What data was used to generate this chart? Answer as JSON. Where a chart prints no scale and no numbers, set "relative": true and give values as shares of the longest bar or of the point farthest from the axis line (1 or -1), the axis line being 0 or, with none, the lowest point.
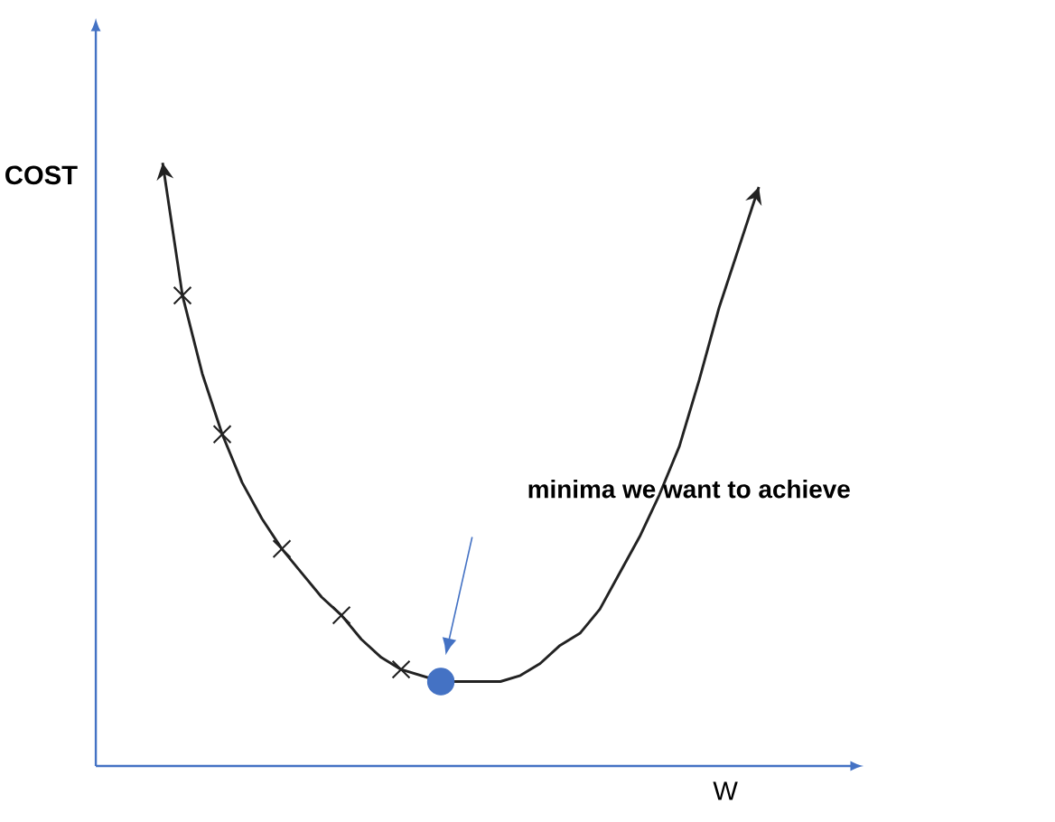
{
  "chart_data": {
    "type": "line",
    "relative": true,
    "xlabel": "W",
    "ylabel": "COST",
    "annotations": [
      "minima we want to achieve"
    ],
    "categories": [
      null,
      null,
      null,
      null,
      null,
      null,
      null,
      null,
      null,
      null,
      null,
      null,
      null,
      null,
      null,
      null,
      null,
      null,
      null,
      null,
      null,
      null,
      null,
      null,
      null,
      null,
      null,
      null,
      null,
      null,
      null
    ],
    "series": [
      {
        "color": "#222222",
        "marker": "none",
        "values": [
          1.0,
          0.78,
          0.65,
          0.55,
          0.47,
          0.41,
          0.36,
          0.32,
          0.28,
          0.25,
          0.21,
          0.18,
          0.16,
          0.15,
          0.14,
          0.14,
          0.14,
          0.14,
          0.15,
          0.17,
          0.2,
          0.22,
          0.26,
          0.32,
          0.38,
          0.45,
          0.53,
          0.64,
          0.76,
          0.86,
          0.96
        ]
      },
      {
        "color": "#222222",
        "marker": "cross",
        "values": [
          null,
          0.78,
          null,
          0.55,
          null,
          null,
          0.36,
          null,
          null,
          0.25,
          null,
          null,
          0.16,
          null,
          null,
          null,
          null,
          null,
          null,
          null,
          null,
          null,
          null,
          null,
          null,
          null,
          null,
          null,
          null,
          null,
          null
        ]
      },
      {
        "color": "#4472c4",
        "marker": "circle",
        "values": [
          null,
          null,
          null,
          null,
          null,
          null,
          null,
          null,
          null,
          null,
          null,
          null,
          null,
          null,
          0.14,
          null,
          null,
          null,
          null,
          null,
          null,
          null,
          null,
          null,
          null,
          null,
          null,
          null,
          null,
          null,
          null
        ]
      }
    ]
  }
}
